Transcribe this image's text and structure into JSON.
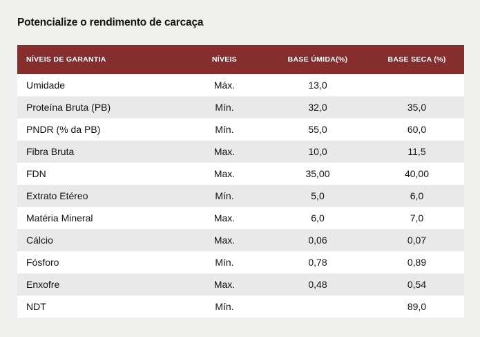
{
  "page": {
    "title": "Potencialize o rendimento de carcaça",
    "background_color": "#f0f0ee"
  },
  "table": {
    "header_bg_color": "#862d2d",
    "header_text_color": "#ffffff",
    "stripe_color": "#e9e9e9",
    "columns": [
      "NÍVEIS DE GARANTIA",
      "NÍVEIS",
      "BASE ÚMIDA(%)",
      "BASE SECA (%)"
    ],
    "rows": [
      {
        "label": "Umidade",
        "nivel": "Máx.",
        "base_umida": "13,0",
        "base_seca": ""
      },
      {
        "label": "Proteína Bruta (PB)",
        "nivel": "Mín.",
        "base_umida": "32,0",
        "base_seca": "35,0"
      },
      {
        "label": "PNDR (% da PB)",
        "nivel": "Mín.",
        "base_umida": "55,0",
        "base_seca": "60,0"
      },
      {
        "label": "Fibra Bruta",
        "nivel": "Max.",
        "base_umida": "10,0",
        "base_seca": "11,5"
      },
      {
        "label": "FDN",
        "nivel": "Max.",
        "base_umida": "35,00",
        "base_seca": "40,00"
      },
      {
        "label": "Extrato Etéreo",
        "nivel": "Mín.",
        "base_umida": "5,0",
        "base_seca": "6,0"
      },
      {
        "label": "Matéria Mineral",
        "nivel": "Max.",
        "base_umida": "6,0",
        "base_seca": "7,0"
      },
      {
        "label": "Cálcio",
        "nivel": "Max.",
        "base_umida": "0,06",
        "base_seca": "0,07"
      },
      {
        "label": "Fósforo",
        "nivel": "Mín.",
        "base_umida": "0,78",
        "base_seca": "0,89"
      },
      {
        "label": "Enxofre",
        "nivel": "Max.",
        "base_umida": "0,48",
        "base_seca": "0,54"
      },
      {
        "label": "NDT",
        "nivel": "Mín.",
        "base_umida": "",
        "base_seca": "89,0"
      }
    ]
  }
}
